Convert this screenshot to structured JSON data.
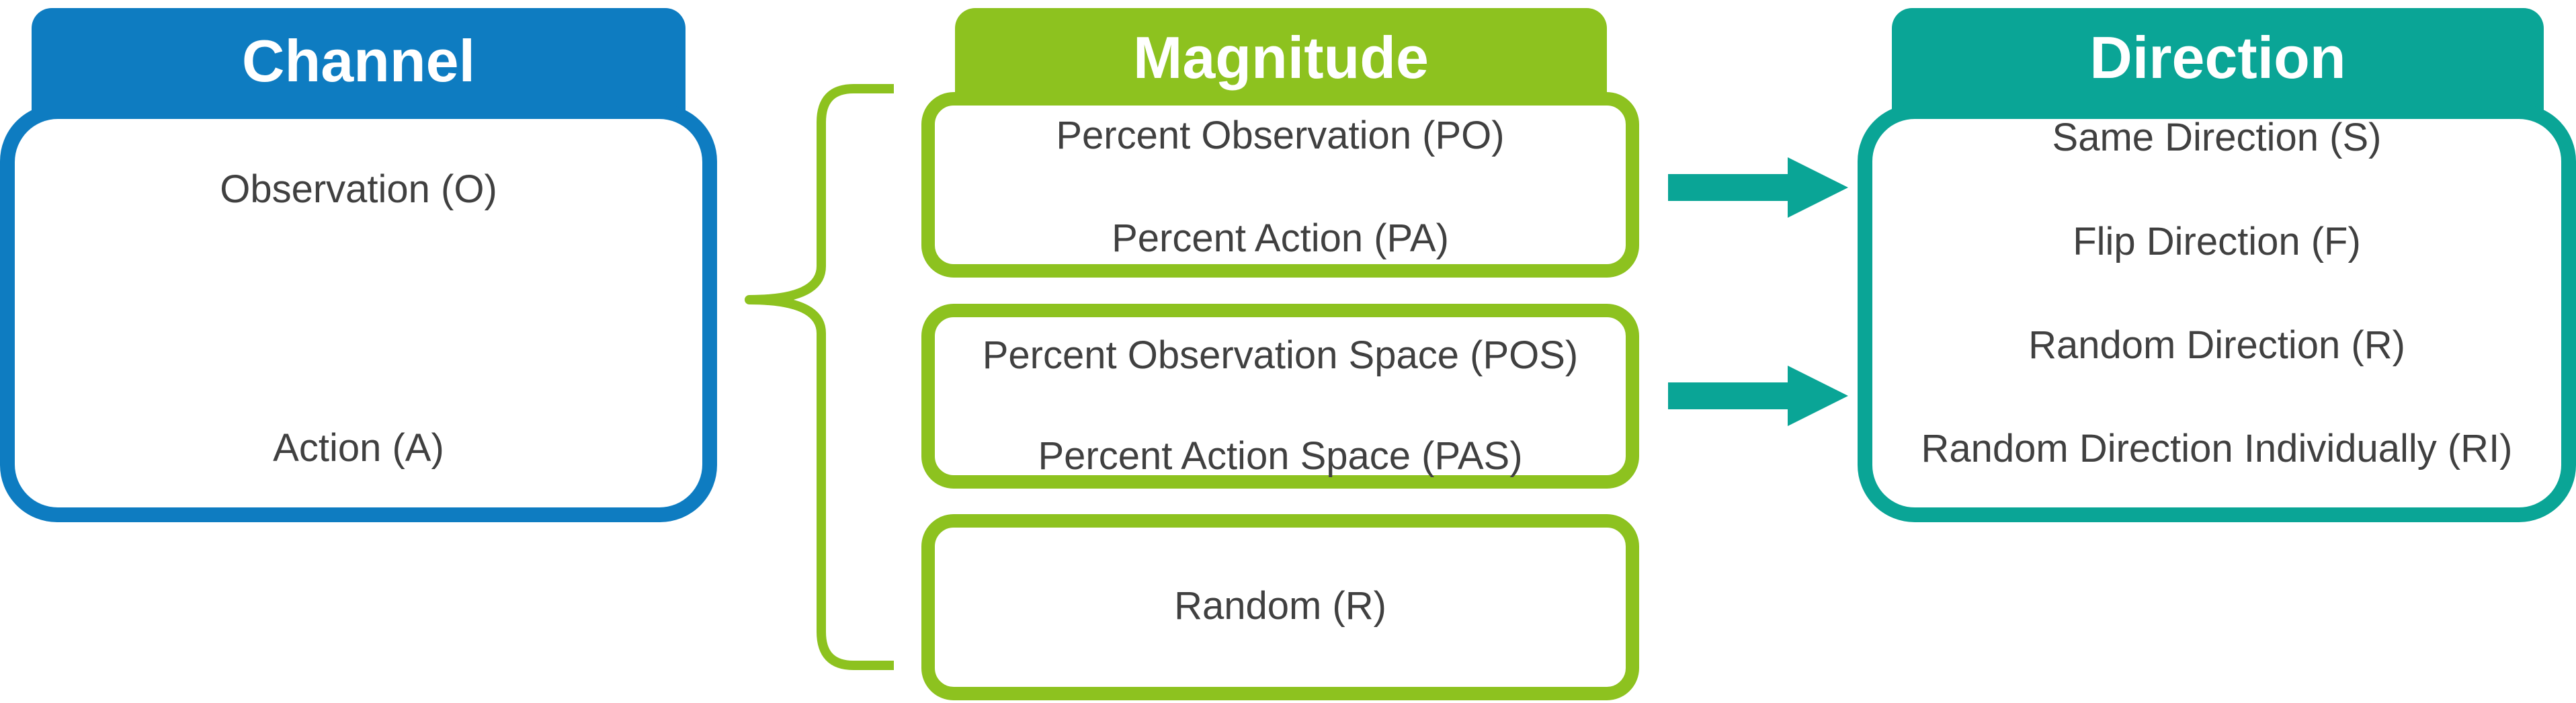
{
  "channel": {
    "title": "Channel",
    "items": [
      "Observation (O)",
      "Action (A)"
    ]
  },
  "magnitude": {
    "title": "Magnitude",
    "groups": [
      [
        "Percent Observation (PO)",
        "Percent Action (PA)"
      ],
      [
        "Percent Observation Space (POS)",
        "Percent Action Space (PAS)"
      ],
      [
        "Random (R)"
      ]
    ]
  },
  "direction": {
    "title": "Direction",
    "items": [
      "Same Direction (S)",
      "Flip Direction (F)",
      "Random Direction (R)",
      "Random Direction Individually (RI)"
    ]
  },
  "colors": {
    "channel": "#0e7cc1",
    "magnitude": "#8dc21f",
    "direction": "#0aa596",
    "text": "#404040"
  }
}
